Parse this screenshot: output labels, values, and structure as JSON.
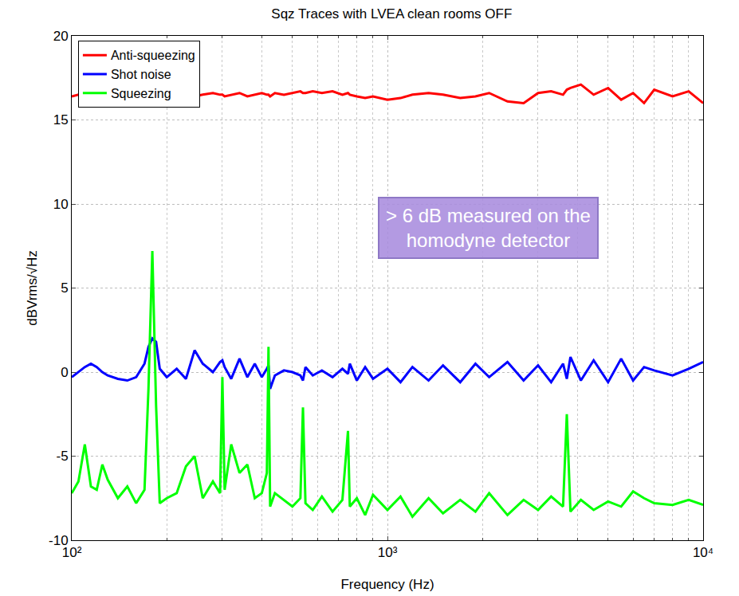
{
  "chart_data": {
    "type": "line",
    "title": "Sqz Traces with LVEA clean rooms OFF",
    "x_label": "Frequency (Hz)",
    "y_label": "dBVrms/√Hz",
    "log": "x",
    "grid": true,
    "legend": "top-left",
    "xlim": [
      100,
      10000
    ],
    "ylim": [
      -10,
      20
    ],
    "xticks": [
      {
        "value": 100,
        "label": "10²"
      },
      {
        "value": 1000,
        "label": "10³"
      },
      {
        "value": 10000,
        "label": "10⁴"
      }
    ],
    "yticks": [
      -10,
      -5,
      0,
      5,
      10,
      15,
      20
    ],
    "annotations": [
      {
        "text": "> 6 dB measured on the homodyne detector"
      }
    ],
    "x": [
      100,
      105,
      110,
      115,
      120,
      125,
      130,
      140,
      150,
      160,
      170,
      175,
      180,
      185,
      190,
      200,
      215,
      230,
      245,
      260,
      280,
      295,
      300,
      305,
      320,
      340,
      360,
      380,
      400,
      415,
      420,
      425,
      440,
      470,
      500,
      530,
      540,
      550,
      580,
      620,
      670,
      720,
      750,
      760,
      800,
      850,
      900,
      1000,
      1100,
      1200,
      1350,
      1500,
      1700,
      1900,
      2100,
      2400,
      2700,
      3000,
      3300,
      3600,
      3700,
      3800,
      4100,
      4500,
      5000,
      5500,
      6000,
      6500,
      7000,
      8000,
      9000,
      10000
    ],
    "series": [
      {
        "name": "Anti-squeezing",
        "color": "#ff0000",
        "values": [
          16.4,
          16.5,
          16.4,
          16.6,
          16.5,
          16.4,
          16.5,
          16.6,
          16.5,
          16.4,
          16.5,
          16.6,
          16.7,
          16.5,
          16.4,
          16.5,
          16.6,
          16.5,
          16.4,
          16.5,
          16.6,
          16.5,
          16.5,
          16.4,
          16.5,
          16.6,
          16.4,
          16.5,
          16.6,
          16.5,
          16.5,
          16.4,
          16.6,
          16.5,
          16.6,
          16.7,
          16.6,
          16.6,
          16.7,
          16.6,
          16.7,
          16.5,
          16.6,
          16.5,
          16.4,
          16.3,
          16.4,
          16.2,
          16.3,
          16.5,
          16.6,
          16.5,
          16.3,
          16.4,
          16.6,
          16.1,
          16.0,
          16.6,
          16.7,
          16.5,
          16.8,
          16.9,
          17.1,
          16.5,
          16.9,
          16.2,
          16.6,
          16.0,
          16.8,
          16.4,
          16.7,
          16.0
        ]
      },
      {
        "name": "Shot noise",
        "color": "#0000ff",
        "values": [
          -0.3,
          0,
          0.3,
          0.5,
          0.3,
          0,
          -0.2,
          -0.4,
          -0.5,
          -0.3,
          0.5,
          1.5,
          2.0,
          1.8,
          0.2,
          -0.3,
          0.2,
          -0.4,
          1.3,
          0.5,
          0.0,
          0.6,
          0.7,
          0.3,
          -0.4,
          0.8,
          -0.3,
          0.5,
          -0.3,
          0.2,
          0.4,
          -1.0,
          -0.2,
          0.1,
          0,
          -0.2,
          -0.5,
          0.3,
          -0.2,
          0.1,
          -0.3,
          0.2,
          -0.1,
          0.5,
          -0.5,
          0.3,
          -0.4,
          0.2,
          -0.6,
          0.3,
          -0.5,
          0.4,
          -0.6,
          0.5,
          -0.3,
          0.6,
          -0.5,
          0.4,
          -0.6,
          0.5,
          -0.4,
          0.9,
          -0.5,
          0.7,
          -0.6,
          0.8,
          -0.5,
          0.3,
          0.1,
          -0.2,
          0.2,
          0.6
        ]
      },
      {
        "name": "Squeezing",
        "color": "#00ff00",
        "values": [
          -7.2,
          -6.5,
          -4.3,
          -6.8,
          -7.0,
          -5.5,
          -6.4,
          -7.5,
          -6.8,
          -7.8,
          -7.0,
          -1.0,
          7.2,
          -2.0,
          -7.8,
          -7.5,
          -7.2,
          -5.6,
          -5.0,
          -7.5,
          -6.5,
          -7.2,
          -0.3,
          -7.0,
          -4.3,
          -6.0,
          -5.5,
          -7.5,
          -7.2,
          -6.0,
          1.5,
          -8.0,
          -7.2,
          -7.6,
          -8.0,
          -7.5,
          -2.1,
          -7.8,
          -8.2,
          -7.4,
          -8.3,
          -7.6,
          -3.5,
          -8.0,
          -7.5,
          -8.5,
          -7.3,
          -8.2,
          -7.4,
          -8.6,
          -7.5,
          -8.4,
          -7.6,
          -8.3,
          -7.2,
          -8.5,
          -7.6,
          -8.2,
          -7.4,
          -8.0,
          -2.5,
          -8.3,
          -7.6,
          -8.2,
          -7.7,
          -8.0,
          -7.1,
          -7.5,
          -7.8,
          -7.9,
          -7.6,
          -7.9
        ]
      }
    ]
  }
}
